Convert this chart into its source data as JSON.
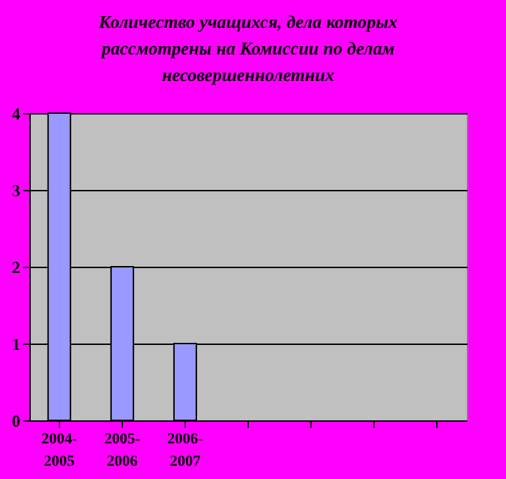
{
  "chart_data": {
    "type": "bar",
    "title": "Количество учащихся, дела которых рассмотрены на Комиссии по делам несовершеннолетних",
    "categories": [
      "2004-2005",
      "2005-2006",
      "2006-2007",
      null,
      null,
      null,
      null
    ],
    "values": [
      4,
      2,
      1,
      null,
      null,
      null,
      null
    ],
    "color": "#9999ff",
    "ylim": [
      0,
      4
    ],
    "yticks": [
      0,
      1,
      2,
      3,
      4
    ],
    "grid": "y"
  }
}
